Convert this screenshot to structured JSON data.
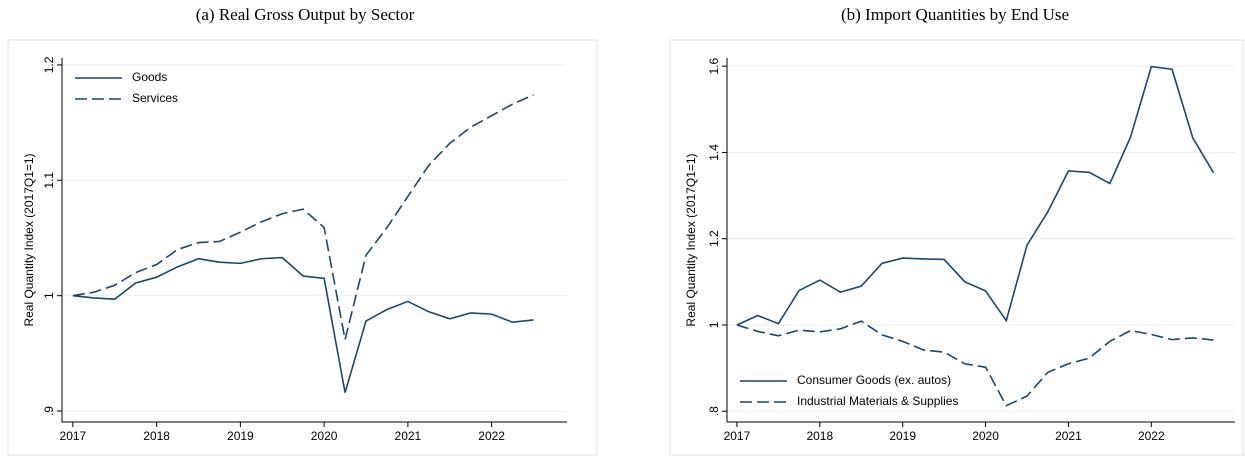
{
  "chart_data": [
    {
      "type": "line",
      "title": "(a) Real Gross Output by Sector",
      "ylabel": "Real Quantity Index (2017Q1=1)",
      "x": [
        2017,
        2017.25,
        2017.5,
        2017.75,
        2018,
        2018.25,
        2018.5,
        2018.75,
        2019,
        2019.25,
        2019.5,
        2019.75,
        2020,
        2020.25,
        2020.5,
        2020.75,
        2021,
        2021.25,
        2021.5,
        2021.75,
        2022,
        2022.25,
        2022.5
      ],
      "series": [
        {
          "name": "Goods",
          "color": "#1a476f",
          "linestyle": "solid",
          "values": [
            1.0,
            0.998,
            0.997,
            1.011,
            1.016,
            1.025,
            1.032,
            1.029,
            1.028,
            1.032,
            1.033,
            1.017,
            1.015,
            0.916,
            0.978,
            0.988,
            0.995,
            0.986,
            0.98,
            0.985,
            0.984,
            0.977,
            0.979
          ]
        },
        {
          "name": "Services",
          "color": "#1a476f",
          "linestyle": "dashed",
          "values": [
            1.0,
            1.003,
            1.009,
            1.02,
            1.027,
            1.04,
            1.046,
            1.047,
            1.055,
            1.064,
            1.071,
            1.075,
            1.059,
            0.962,
            1.035,
            1.059,
            1.086,
            1.113,
            1.132,
            1.146,
            1.156,
            1.166,
            1.174
          ]
        }
      ],
      "xlim": [
        2016.87,
        2022.9
      ],
      "xticks": [
        2017,
        2018,
        2019,
        2020,
        2021,
        2022
      ],
      "ylim": [
        0.8905,
        1.206
      ],
      "yticks": [
        {
          "value": 0.9,
          "label": ".9"
        },
        1,
        1.1,
        1.2
      ],
      "grid": true,
      "legend": "upper left"
    },
    {
      "type": "line",
      "title": "(b) Import Quantities by End Use",
      "ylabel": "Real Quantity Index (2017Q1=1)",
      "x": [
        2017,
        2017.25,
        2017.5,
        2017.75,
        2018,
        2018.25,
        2018.5,
        2018.75,
        2019,
        2019.25,
        2019.5,
        2019.75,
        2020,
        2020.25,
        2020.5,
        2020.75,
        2021,
        2021.25,
        2021.5,
        2021.75,
        2022,
        2022.25,
        2022.5,
        2022.75
      ],
      "series": [
        {
          "name": "Consumer Goods (ex. autos)",
          "color": "#1a476f",
          "linestyle": "solid",
          "values": [
            1.0,
            1.022,
            1.003,
            1.08,
            1.104,
            1.076,
            1.09,
            1.143,
            1.155,
            1.153,
            1.152,
            1.1,
            1.079,
            1.01,
            1.185,
            1.262,
            1.357,
            1.354,
            1.328,
            1.436,
            1.599,
            1.593,
            1.434,
            1.353
          ]
        },
        {
          "name": "Industrial Materials & Supplies",
          "color": "#1a476f",
          "linestyle": "dashed",
          "values": [
            1.0,
            0.985,
            0.975,
            0.988,
            0.984,
            0.991,
            1.009,
            0.977,
            0.962,
            0.942,
            0.937,
            0.91,
            0.902,
            0.813,
            0.835,
            0.89,
            0.91,
            0.923,
            0.962,
            0.987,
            0.978,
            0.966,
            0.97,
            0.965
          ]
        }
      ],
      "xlim": [
        2016.88,
        2023.01
      ],
      "xticks": [
        2017,
        2018,
        2019,
        2020,
        2021,
        2022
      ],
      "ylim": [
        0.775,
        1.619
      ],
      "yticks": [
        {
          "value": 0.8,
          "label": ".8"
        },
        1,
        1.2,
        1.4,
        1.6
      ],
      "grid": true,
      "legend": "lower left"
    }
  ]
}
